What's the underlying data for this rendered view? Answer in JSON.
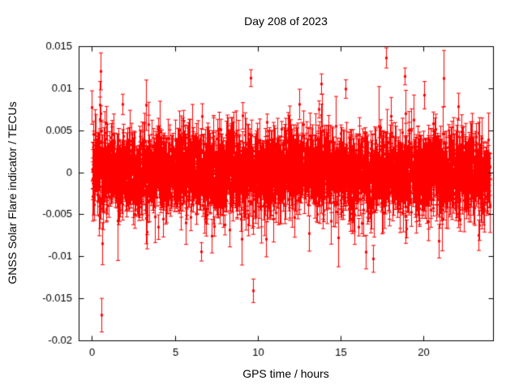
{
  "chart_data": {
    "type": "scatter",
    "style": "yerrorbars",
    "title": "Day 208 of 2023",
    "xlabel": "GPS time / hours",
    "ylabel": "GNSS Solar Flare indicator / TECUs",
    "xlim": [
      -0.8,
      24.2
    ],
    "ylim": [
      -0.02,
      0.015
    ],
    "x_ticks": [
      0,
      5,
      10,
      15,
      20
    ],
    "x_tick_labels": [
      "0",
      "5",
      "10",
      "15",
      "20"
    ],
    "y_ticks": [
      -0.02,
      -0.015,
      -0.01,
      -0.005,
      0,
      0.005,
      0.01,
      0.015
    ],
    "y_tick_labels": [
      "-0.02",
      "-0.015",
      "-0.01",
      "-0.005",
      "0",
      "0.005",
      "0.01",
      "0.015"
    ],
    "grid": false,
    "legend": "none",
    "marker_color": "#ff0000",
    "axis_color": "#000000",
    "marker": "filled-square",
    "point_generation": {
      "seed": 7,
      "n_points": 2600,
      "t_start": 0,
      "t_end": 24,
      "base_std": 0.0019,
      "tail_prob": 0.13,
      "tail_std": 0.0033,
      "err_base": 0.0009,
      "err_scale": 0.0013
    },
    "outliers": [
      [
        0.5,
        0.012,
        0.0022
      ],
      [
        0.55,
        -0.017,
        0.002
      ],
      [
        0.45,
        0.008,
        0.0028
      ],
      [
        0.6,
        -0.0085,
        0.0025
      ],
      [
        9.55,
        0.0112,
        0.001
      ],
      [
        9.7,
        -0.0141,
        0.0014
      ],
      [
        13.85,
        0.0105,
        0.0012
      ],
      [
        15.3,
        0.0099,
        0.0011
      ],
      [
        16.5,
        -0.0095,
        0.002
      ],
      [
        16.95,
        -0.0103,
        0.0016
      ],
      [
        17.75,
        0.0136,
        0.0012
      ],
      [
        18.85,
        0.0114,
        0.001
      ],
      [
        20.9,
        -0.0082,
        0.002
      ],
      [
        22.1,
        0.0078,
        0.0016
      ],
      [
        23.3,
        -0.0075,
        0.0018
      ]
    ]
  }
}
